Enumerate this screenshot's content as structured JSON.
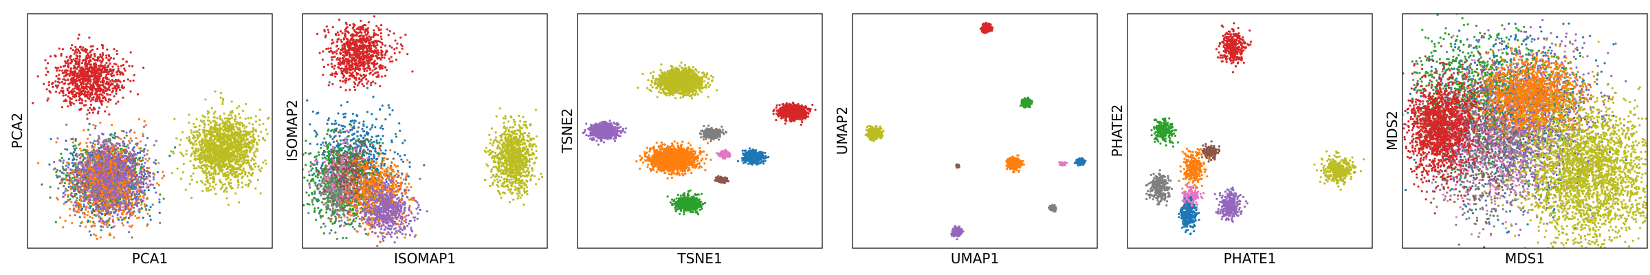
{
  "colors": {
    "blue": "#1f77b4",
    "orange": "#ff7f0e",
    "green": "#2ca02c",
    "red": "#d62728",
    "purple": "#9467bd",
    "brown": "#8c564b",
    "pink": "#e377c2",
    "gray": "#7f7f7f",
    "olive": "#bcbd22"
  },
  "chart_data": [
    {
      "type": "scatter",
      "xlabel": "PCA1",
      "ylabel": "PCA2",
      "xlim": [
        0,
        1
      ],
      "ylim": [
        0,
        1
      ],
      "grid": false,
      "clusters": [
        {
          "color": "red",
          "cx": 0.25,
          "cy": 0.73,
          "sx": 0.07,
          "sy": 0.06,
          "n": 900
        },
        {
          "color": "blue",
          "cx": 0.33,
          "cy": 0.3,
          "sx": 0.08,
          "sy": 0.08,
          "n": 600
        },
        {
          "color": "green",
          "cx": 0.31,
          "cy": 0.3,
          "sx": 0.08,
          "sy": 0.08,
          "n": 500
        },
        {
          "color": "gray",
          "cx": 0.32,
          "cy": 0.29,
          "sx": 0.08,
          "sy": 0.08,
          "n": 400
        },
        {
          "color": "pink",
          "cx": 0.33,
          "cy": 0.29,
          "sx": 0.07,
          "sy": 0.07,
          "n": 300
        },
        {
          "color": "brown",
          "cx": 0.33,
          "cy": 0.29,
          "sx": 0.07,
          "sy": 0.07,
          "n": 300
        },
        {
          "color": "orange",
          "cx": 0.33,
          "cy": 0.28,
          "sx": 0.08,
          "sy": 0.09,
          "n": 700
        },
        {
          "color": "purple",
          "cx": 0.34,
          "cy": 0.31,
          "sx": 0.08,
          "sy": 0.08,
          "n": 600
        },
        {
          "color": "olive",
          "cx": 0.8,
          "cy": 0.42,
          "sx": 0.07,
          "sy": 0.07,
          "n": 1500
        }
      ]
    },
    {
      "type": "scatter",
      "xlabel": "ISOMAP1",
      "ylabel": "ISOMAP2",
      "xlim": [
        0,
        1
      ],
      "ylim": [
        0,
        1
      ],
      "grid": false,
      "clusters": [
        {
          "color": "red",
          "cx": 0.23,
          "cy": 0.83,
          "sx": 0.06,
          "sy": 0.06,
          "n": 800
        },
        {
          "color": "blue",
          "cx": 0.22,
          "cy": 0.37,
          "sx": 0.09,
          "sy": 0.11,
          "n": 600
        },
        {
          "color": "green",
          "cx": 0.16,
          "cy": 0.28,
          "sx": 0.07,
          "sy": 0.09,
          "n": 700
        },
        {
          "color": "gray",
          "cx": 0.16,
          "cy": 0.23,
          "sx": 0.05,
          "sy": 0.06,
          "n": 300
        },
        {
          "color": "pink",
          "cx": 0.16,
          "cy": 0.32,
          "sx": 0.05,
          "sy": 0.06,
          "n": 200
        },
        {
          "color": "brown",
          "cx": 0.21,
          "cy": 0.32,
          "sx": 0.06,
          "sy": 0.07,
          "n": 250
        },
        {
          "color": "orange",
          "cx": 0.31,
          "cy": 0.23,
          "sx": 0.06,
          "sy": 0.07,
          "n": 600
        },
        {
          "color": "purple",
          "cx": 0.35,
          "cy": 0.16,
          "sx": 0.05,
          "sy": 0.05,
          "n": 500
        },
        {
          "color": "olive",
          "cx": 0.86,
          "cy": 0.38,
          "sx": 0.04,
          "sy": 0.07,
          "n": 900
        }
      ]
    },
    {
      "type": "scatter",
      "xlabel": "TSNE1",
      "ylabel": "TSNE2",
      "xlim": [
        0,
        1
      ],
      "ylim": [
        0,
        1
      ],
      "grid": false,
      "clusters": [
        {
          "color": "olive",
          "cx": 0.42,
          "cy": 0.71,
          "sx": 0.045,
          "sy": 0.025,
          "n": 1500
        },
        {
          "color": "red",
          "cx": 0.88,
          "cy": 0.58,
          "sx": 0.028,
          "sy": 0.015,
          "n": 800
        },
        {
          "color": "purple",
          "cx": 0.11,
          "cy": 0.5,
          "sx": 0.028,
          "sy": 0.016,
          "n": 700
        },
        {
          "color": "gray",
          "cx": 0.55,
          "cy": 0.49,
          "sx": 0.018,
          "sy": 0.01,
          "n": 300
        },
        {
          "color": "orange",
          "cx": 0.39,
          "cy": 0.38,
          "sx": 0.045,
          "sy": 0.025,
          "n": 1500
        },
        {
          "color": "pink",
          "cx": 0.6,
          "cy": 0.4,
          "sx": 0.01,
          "sy": 0.007,
          "n": 150
        },
        {
          "color": "blue",
          "cx": 0.72,
          "cy": 0.39,
          "sx": 0.02,
          "sy": 0.013,
          "n": 500
        },
        {
          "color": "brown",
          "cx": 0.59,
          "cy": 0.29,
          "sx": 0.01,
          "sy": 0.006,
          "n": 150
        },
        {
          "color": "green",
          "cx": 0.45,
          "cy": 0.19,
          "sx": 0.025,
          "sy": 0.016,
          "n": 600
        }
      ]
    },
    {
      "type": "scatter",
      "xlabel": "UMAP1",
      "ylabel": "UMAP2",
      "xlim": [
        0,
        1
      ],
      "ylim": [
        0,
        1
      ],
      "grid": false,
      "clusters": [
        {
          "color": "red",
          "cx": 0.55,
          "cy": 0.94,
          "sx": 0.009,
          "sy": 0.008,
          "n": 250
        },
        {
          "color": "green",
          "cx": 0.71,
          "cy": 0.62,
          "sx": 0.009,
          "sy": 0.008,
          "n": 200
        },
        {
          "color": "olive",
          "cx": 0.09,
          "cy": 0.49,
          "sx": 0.013,
          "sy": 0.012,
          "n": 400
        },
        {
          "color": "orange",
          "cx": 0.66,
          "cy": 0.36,
          "sx": 0.013,
          "sy": 0.011,
          "n": 400
        },
        {
          "color": "pink",
          "cx": 0.86,
          "cy": 0.36,
          "sx": 0.006,
          "sy": 0.003,
          "n": 80
        },
        {
          "color": "blue",
          "cx": 0.93,
          "cy": 0.37,
          "sx": 0.008,
          "sy": 0.006,
          "n": 150
        },
        {
          "color": "brown",
          "cx": 0.43,
          "cy": 0.35,
          "sx": 0.003,
          "sy": 0.003,
          "n": 40
        },
        {
          "color": "gray",
          "cx": 0.82,
          "cy": 0.17,
          "sx": 0.006,
          "sy": 0.006,
          "n": 80
        },
        {
          "color": "purple",
          "cx": 0.43,
          "cy": 0.07,
          "sx": 0.009,
          "sy": 0.008,
          "n": 200
        }
      ]
    },
    {
      "type": "scatter",
      "xlabel": "PHATE1",
      "ylabel": "PHATE2",
      "xlim": [
        0,
        1
      ],
      "ylim": [
        0,
        1
      ],
      "grid": false,
      "clusters": [
        {
          "color": "red",
          "cx": 0.43,
          "cy": 0.86,
          "sx": 0.025,
          "sy": 0.035,
          "n": 350
        },
        {
          "color": "green",
          "cx": 0.15,
          "cy": 0.5,
          "sx": 0.02,
          "sy": 0.025,
          "n": 250
        },
        {
          "color": "brown",
          "cx": 0.34,
          "cy": 0.41,
          "sx": 0.015,
          "sy": 0.015,
          "n": 150
        },
        {
          "color": "orange",
          "cx": 0.27,
          "cy": 0.34,
          "sx": 0.02,
          "sy": 0.035,
          "n": 300
        },
        {
          "color": "gray",
          "cx": 0.13,
          "cy": 0.26,
          "sx": 0.02,
          "sy": 0.03,
          "n": 250
        },
        {
          "color": "pink",
          "cx": 0.26,
          "cy": 0.22,
          "sx": 0.015,
          "sy": 0.02,
          "n": 200
        },
        {
          "color": "blue",
          "cx": 0.25,
          "cy": 0.14,
          "sx": 0.015,
          "sy": 0.03,
          "n": 250
        },
        {
          "color": "purple",
          "cx": 0.42,
          "cy": 0.18,
          "sx": 0.02,
          "sy": 0.03,
          "n": 300
        },
        {
          "color": "olive",
          "cx": 0.86,
          "cy": 0.33,
          "sx": 0.03,
          "sy": 0.025,
          "n": 350
        }
      ]
    },
    {
      "type": "scatter",
      "xlabel": "MDS1",
      "ylabel": "MDS2",
      "xlim": [
        0,
        1
      ],
      "ylim": [
        0,
        1
      ],
      "grid": false,
      "clusters": [
        {
          "color": "blue",
          "cx": 0.45,
          "cy": 0.55,
          "sx": 0.17,
          "sy": 0.18,
          "n": 1000
        },
        {
          "color": "green",
          "cx": 0.35,
          "cy": 0.68,
          "sx": 0.16,
          "sy": 0.13,
          "n": 900
        },
        {
          "color": "gray",
          "cx": 0.36,
          "cy": 0.42,
          "sx": 0.13,
          "sy": 0.16,
          "n": 700
        },
        {
          "color": "pink",
          "cx": 0.4,
          "cy": 0.45,
          "sx": 0.13,
          "sy": 0.15,
          "n": 500
        },
        {
          "color": "brown",
          "cx": 0.33,
          "cy": 0.5,
          "sx": 0.13,
          "sy": 0.15,
          "n": 500
        },
        {
          "color": "purple",
          "cx": 0.52,
          "cy": 0.55,
          "sx": 0.14,
          "sy": 0.16,
          "n": 900
        },
        {
          "color": "orange",
          "cx": 0.53,
          "cy": 0.65,
          "sx": 0.1,
          "sy": 0.08,
          "n": 1300
        },
        {
          "color": "red",
          "cx": 0.15,
          "cy": 0.51,
          "sx": 0.07,
          "sy": 0.1,
          "n": 1400
        },
        {
          "color": "olive",
          "cx": 0.76,
          "cy": 0.32,
          "sx": 0.13,
          "sy": 0.15,
          "n": 2600
        }
      ]
    }
  ]
}
